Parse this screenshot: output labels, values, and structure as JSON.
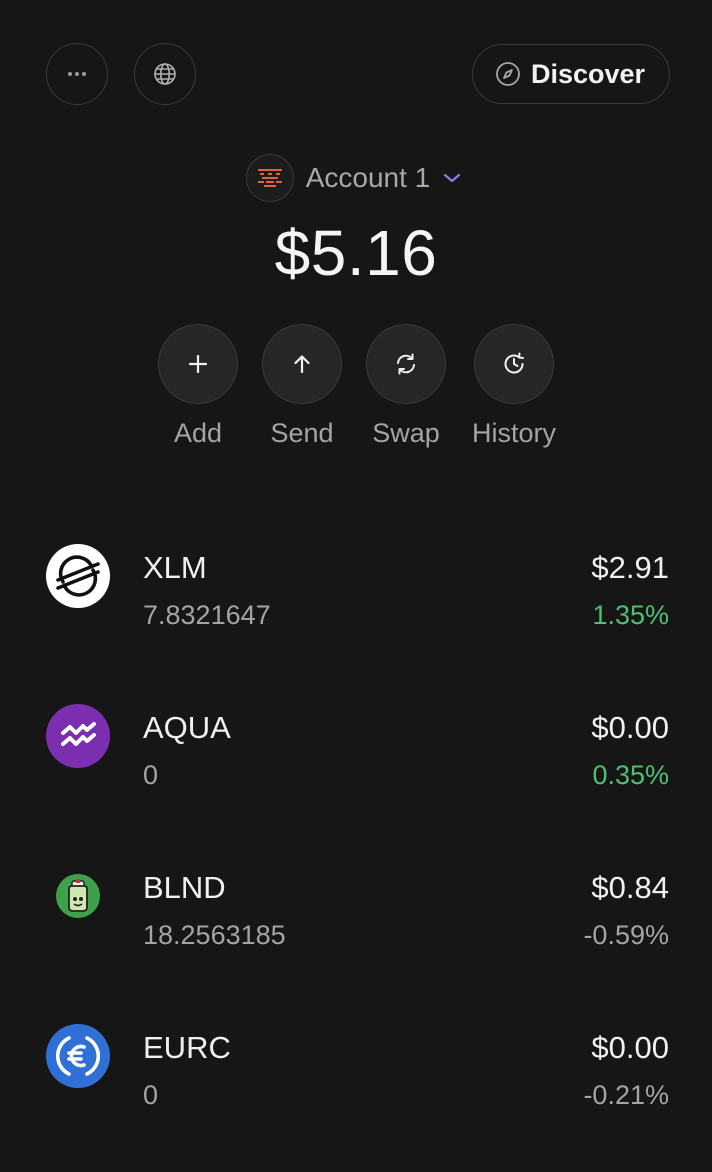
{
  "header": {
    "discover_label": "Discover",
    "more_icon": "more-dots-icon",
    "globe_icon": "globe-icon",
    "compass_icon": "compass-icon"
  },
  "account": {
    "name": "Account 1",
    "balance": "$5.16",
    "chevron_color": "#8f7cf0"
  },
  "actions": [
    {
      "label": "Add",
      "icon": "plus-icon"
    },
    {
      "label": "Send",
      "icon": "arrow-up-icon"
    },
    {
      "label": "Swap",
      "icon": "swap-icon"
    },
    {
      "label": "History",
      "icon": "clock-history-icon"
    }
  ],
  "assets": [
    {
      "code": "XLM",
      "amount": "7.8321647",
      "value": "$2.91",
      "change": "1.35%",
      "trend": "positive",
      "icon": "stellar-logo-icon"
    },
    {
      "code": "AQUA",
      "amount": "0",
      "value": "$0.00",
      "change": "0.35%",
      "trend": "positive",
      "icon": "aqua-logo-icon"
    },
    {
      "code": "BLND",
      "amount": "18.2563185",
      "value": "$0.84",
      "change": "-0.59%",
      "trend": "negative",
      "icon": "blend-logo-icon"
    },
    {
      "code": "EURC",
      "amount": "0",
      "value": "$0.00",
      "change": "-0.21%",
      "trend": "negative",
      "icon": "euro-coin-icon"
    }
  ],
  "colors": {
    "background": "#161616",
    "positive": "#4fbf73",
    "aqua": "#7b2fb0",
    "eurc": "#2f6fd6",
    "blnd": "#3da14a"
  }
}
